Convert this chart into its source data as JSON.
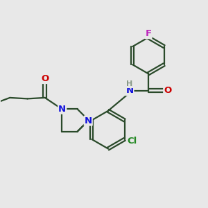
{
  "bg_color": "#e8e8e8",
  "bond_color": "#2a4a2a",
  "atom_colors": {
    "N": "#1010dd",
    "O": "#cc0000",
    "Cl": "#228822",
    "F": "#bb22bb",
    "H": "#889988",
    "C": "#2a4a2a"
  },
  "bond_width": 1.6,
  "font_size": 9.5,
  "figsize": [
    3.0,
    3.0
  ],
  "dpi": 100
}
